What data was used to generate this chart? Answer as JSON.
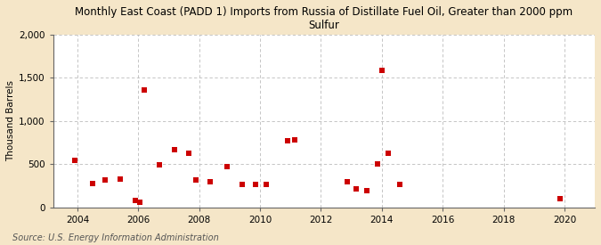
{
  "title": "Monthly East Coast (PADD 1) Imports from Russia of Distillate Fuel Oil, Greater than 2000 ppm\nSulfur",
  "ylabel": "Thousand Barrels",
  "source": "Source: U.S. Energy Information Administration",
  "background_color": "#f5e6c8",
  "plot_bg_color": "#ffffff",
  "grid_color": "#bbbbbb",
  "marker_color": "#cc0000",
  "marker_size": 4,
  "xlim": [
    2003.2,
    2021.0
  ],
  "ylim": [
    0,
    2000
  ],
  "xticks": [
    2004,
    2006,
    2008,
    2010,
    2012,
    2014,
    2016,
    2018,
    2020
  ],
  "yticks": [
    0,
    500,
    1000,
    1500,
    2000
  ],
  "ytick_labels": [
    "0",
    "500",
    "1,000",
    "1,500",
    "2,000"
  ],
  "data_x": [
    2003.9,
    2004.5,
    2004.9,
    2005.4,
    2005.9,
    2006.05,
    2006.2,
    2006.7,
    2007.2,
    2007.65,
    2007.9,
    2008.35,
    2008.9,
    2009.4,
    2009.85,
    2010.2,
    2010.9,
    2011.15,
    2012.85,
    2013.15,
    2013.5,
    2013.85,
    2014.0,
    2014.2,
    2014.6,
    2019.85
  ],
  "data_y": [
    545,
    270,
    315,
    330,
    75,
    55,
    1355,
    490,
    665,
    625,
    315,
    290,
    475,
    260,
    265,
    260,
    770,
    775,
    295,
    210,
    195,
    505,
    1590,
    625,
    265,
    100
  ]
}
